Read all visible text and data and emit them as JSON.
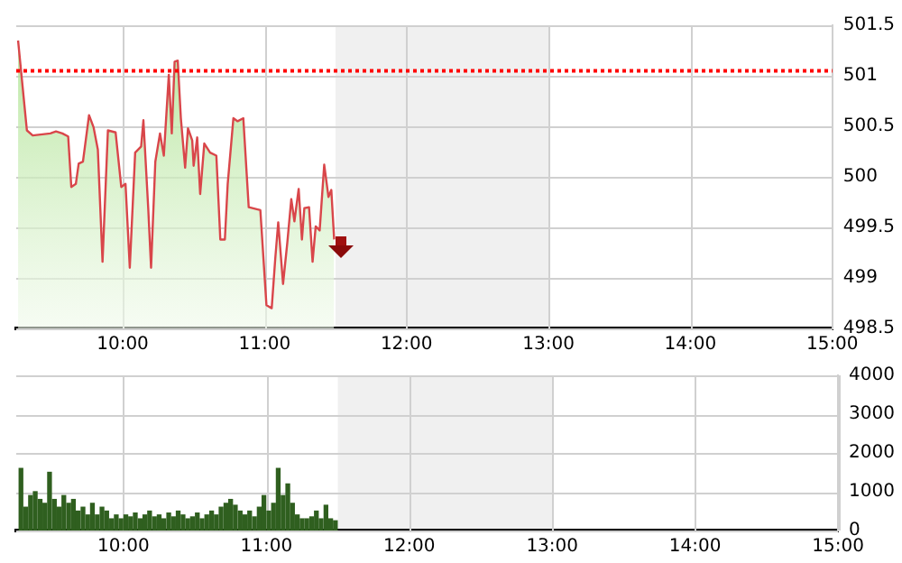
{
  "chart_data": [
    {
      "type": "area",
      "series": [
        {
          "color": "#d9464a",
          "x": [
            9.263,
            9.325,
            9.366,
            9.49,
            9.53,
            9.575,
            9.616,
            9.638,
            9.67,
            9.69,
            9.72,
            9.763,
            9.795,
            9.825,
            9.858,
            9.896,
            9.95,
            9.99,
            10.02,
            10.05,
            10.088,
            10.13,
            10.146,
            10.18,
            10.2,
            10.23,
            10.263,
            10.29,
            10.325,
            10.346,
            10.366,
            10.388,
            10.41,
            10.44,
            10.46,
            10.49,
            10.5,
            10.525,
            10.546,
            10.575,
            10.616,
            10.66,
            10.688,
            10.72,
            10.74,
            10.78,
            10.81,
            10.85,
            10.888,
            10.97,
            11.013,
            11.05,
            11.075,
            11.096,
            11.13,
            11.16,
            11.188,
            11.21,
            11.24,
            11.263,
            11.28,
            11.313,
            11.338,
            11.36,
            11.388,
            11.42,
            11.45,
            11.47,
            11.49
          ],
          "values": [
            501.35,
            500.46,
            500.41,
            500.43,
            500.45,
            500.43,
            500.4,
            499.9,
            499.93,
            500.13,
            500.15,
            500.61,
            500.49,
            500.27,
            499.16,
            500.46,
            500.44,
            499.9,
            499.93,
            499.1,
            500.24,
            500.3,
            500.56,
            499.69,
            499.1,
            500.15,
            500.43,
            500.21,
            501.01,
            500.43,
            501.14,
            501.15,
            500.58,
            500.09,
            500.48,
            500.36,
            500.11,
            500.39,
            499.83,
            500.33,
            500.24,
            500.21,
            499.38,
            499.38,
            499.93,
            500.58,
            500.55,
            500.58,
            499.7,
            499.67,
            498.73,
            498.7,
            499.19,
            499.55,
            498.94,
            499.35,
            499.78,
            499.56,
            499.88,
            499.38,
            499.69,
            499.7,
            499.16,
            499.51,
            499.47,
            500.12,
            499.8,
            499.87,
            499.38
          ]
        }
      ],
      "xlim": [
        9.25,
        15
      ],
      "xticks": [
        {
          "value": 10,
          "label": "10:00"
        },
        {
          "value": 11,
          "label": "11:00"
        },
        {
          "value": 12,
          "label": "12:00"
        },
        {
          "value": 13,
          "label": "13:00"
        },
        {
          "value": 14,
          "label": "14:00"
        },
        {
          "value": 15,
          "label": "15:00"
        }
      ],
      "ylim": [
        498.5,
        501.5
      ],
      "yticks": [
        498.5,
        499,
        499.5,
        500,
        500.5,
        501,
        501.5
      ],
      "ref_lines": [
        {
          "axis": "y",
          "value": 501.05,
          "color": "#ff0000",
          "line_style": "dotted"
        }
      ],
      "bands": [
        {
          "axis": "x",
          "from": 11.5,
          "to": 13,
          "color": "#f0f0f0"
        }
      ],
      "grid": true,
      "legend": false,
      "marker": "none",
      "line_style": "solid"
    },
    {
      "type": "bar",
      "series": [
        {
          "color": "#2f5f1f",
          "x": [
            9.283,
            9.317,
            9.35,
            9.383,
            9.417,
            9.45,
            9.483,
            9.517,
            9.55,
            9.583,
            9.617,
            9.65,
            9.683,
            9.717,
            9.75,
            9.783,
            9.817,
            9.85,
            9.883,
            9.917,
            9.95,
            9.983,
            10.017,
            10.05,
            10.083,
            10.117,
            10.15,
            10.183,
            10.217,
            10.25,
            10.283,
            10.317,
            10.35,
            10.383,
            10.417,
            10.45,
            10.483,
            10.517,
            10.55,
            10.583,
            10.617,
            10.65,
            10.683,
            10.717,
            10.75,
            10.783,
            10.817,
            10.85,
            10.883,
            10.917,
            10.95,
            10.983,
            11.017,
            11.05,
            11.083,
            11.117,
            11.15,
            11.183,
            11.217,
            11.25,
            11.283,
            11.317,
            11.35,
            11.383,
            11.417,
            11.45,
            11.483
          ],
          "values": [
            1600,
            600,
            900,
            1000,
            800,
            700,
            1500,
            800,
            600,
            900,
            700,
            800,
            500,
            600,
            400,
            700,
            400,
            600,
            500,
            300,
            400,
            300,
            400,
            350,
            450,
            300,
            400,
            500,
            350,
            400,
            300,
            450,
            350,
            500,
            400,
            300,
            350,
            450,
            300,
            400,
            500,
            400,
            600,
            700,
            800,
            650,
            500,
            400,
            500,
            350,
            600,
            900,
            500,
            700,
            1600,
            900,
            1200,
            700,
            400,
            300,
            300,
            350,
            500,
            300,
            650,
            300,
            250
          ]
        }
      ],
      "xlim": [
        9.25,
        15
      ],
      "xticks": [
        {
          "value": 10,
          "label": "10:00"
        },
        {
          "value": 11,
          "label": "11:00"
        },
        {
          "value": 12,
          "label": "12:00"
        },
        {
          "value": 13,
          "label": "13:00"
        },
        {
          "value": 14,
          "label": "14:00"
        },
        {
          "value": 15,
          "label": "15:00"
        }
      ],
      "ylim": [
        0,
        4000
      ],
      "yticks": [
        0,
        1000,
        2000,
        3000,
        4000
      ],
      "bands": [
        {
          "axis": "x",
          "from": 11.5,
          "to": 13,
          "color": "#f0f0f0"
        }
      ],
      "grid": true,
      "legend": false
    }
  ]
}
